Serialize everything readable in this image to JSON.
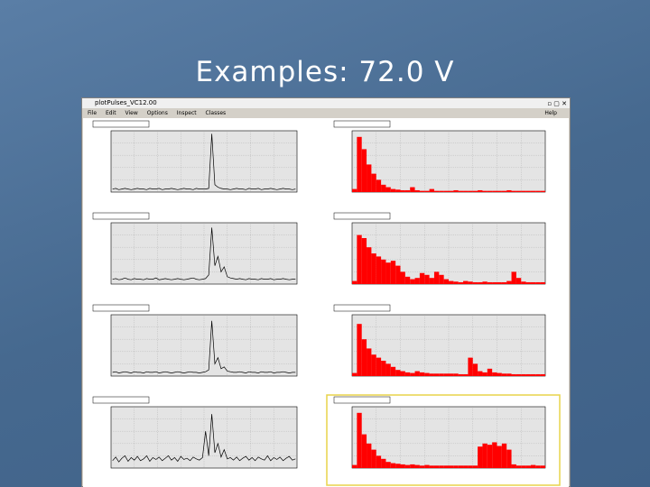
{
  "slide": {
    "title": "Examples: 72.0 V"
  },
  "window": {
    "title": "plotPulses_VC12.00",
    "menu": [
      "File",
      "Edit",
      "View",
      "Options",
      "Inspect",
      "Classes"
    ],
    "help": "Help"
  },
  "panels": [
    {
      "kind": "waveform",
      "color": "#000000",
      "ylim": [
        0,
        1
      ],
      "values": [
        0.05,
        0.06,
        0.04,
        0.05,
        0.06,
        0.05,
        0.04,
        0.05,
        0.06,
        0.05,
        0.05,
        0.04,
        0.06,
        0.05,
        0.05,
        0.06,
        0.04,
        0.05,
        0.05,
        0.06,
        0.05,
        0.04,
        0.05,
        0.06,
        0.05,
        0.05,
        0.04,
        0.06,
        0.05,
        0.05,
        0.05,
        0.06,
        0.95,
        0.12,
        0.08,
        0.06,
        0.05,
        0.05,
        0.04,
        0.05,
        0.06,
        0.05,
        0.05,
        0.04,
        0.06,
        0.05,
        0.05,
        0.06,
        0.04,
        0.05,
        0.05,
        0.06,
        0.05,
        0.04,
        0.05,
        0.06,
        0.05,
        0.05,
        0.04,
        0.05
      ]
    },
    {
      "kind": "histogram",
      "color": "#ff0000",
      "ylim": [
        0,
        1
      ],
      "values": [
        0.05,
        0.9,
        0.7,
        0.45,
        0.3,
        0.2,
        0.12,
        0.08,
        0.05,
        0.04,
        0.03,
        0.03,
        0.08,
        0.03,
        0.02,
        0.02,
        0.05,
        0.02,
        0.02,
        0.02,
        0.02,
        0.03,
        0.02,
        0.02,
        0.02,
        0.02,
        0.03,
        0.02,
        0.02,
        0.02,
        0.02,
        0.02,
        0.03,
        0.02,
        0.02,
        0.02,
        0.02,
        0.02,
        0.02,
        0.02
      ]
    },
    {
      "kind": "waveform",
      "color": "#000000",
      "ylim": [
        0,
        1
      ],
      "values": [
        0.08,
        0.09,
        0.07,
        0.08,
        0.1,
        0.08,
        0.07,
        0.09,
        0.08,
        0.08,
        0.07,
        0.09,
        0.08,
        0.08,
        0.1,
        0.07,
        0.08,
        0.09,
        0.08,
        0.07,
        0.08,
        0.09,
        0.08,
        0.07,
        0.08,
        0.09,
        0.1,
        0.08,
        0.07,
        0.08,
        0.09,
        0.15,
        0.92,
        0.3,
        0.45,
        0.2,
        0.28,
        0.12,
        0.1,
        0.09,
        0.08,
        0.09,
        0.08,
        0.07,
        0.09,
        0.08,
        0.08,
        0.07,
        0.09,
        0.08,
        0.08,
        0.09,
        0.07,
        0.08,
        0.08,
        0.09,
        0.08,
        0.07,
        0.08,
        0.08
      ]
    },
    {
      "kind": "histogram",
      "color": "#ff0000",
      "ylim": [
        0,
        1
      ],
      "values": [
        0.05,
        0.8,
        0.75,
        0.6,
        0.5,
        0.45,
        0.4,
        0.35,
        0.38,
        0.3,
        0.2,
        0.12,
        0.08,
        0.1,
        0.18,
        0.15,
        0.1,
        0.2,
        0.15,
        0.08,
        0.05,
        0.04,
        0.03,
        0.05,
        0.04,
        0.03,
        0.03,
        0.04,
        0.03,
        0.03,
        0.03,
        0.03,
        0.05,
        0.2,
        0.1,
        0.04,
        0.03,
        0.03,
        0.03,
        0.03
      ]
    },
    {
      "kind": "waveform",
      "color": "#000000",
      "ylim": [
        0,
        1
      ],
      "values": [
        0.06,
        0.07,
        0.05,
        0.06,
        0.07,
        0.06,
        0.05,
        0.07,
        0.06,
        0.06,
        0.05,
        0.07,
        0.06,
        0.06,
        0.07,
        0.05,
        0.06,
        0.07,
        0.06,
        0.05,
        0.06,
        0.07,
        0.06,
        0.05,
        0.06,
        0.07,
        0.06,
        0.06,
        0.05,
        0.06,
        0.07,
        0.1,
        0.9,
        0.2,
        0.3,
        0.12,
        0.15,
        0.08,
        0.07,
        0.06,
        0.06,
        0.07,
        0.06,
        0.05,
        0.07,
        0.06,
        0.06,
        0.05,
        0.07,
        0.06,
        0.06,
        0.07,
        0.05,
        0.06,
        0.06,
        0.07,
        0.06,
        0.05,
        0.06,
        0.06
      ]
    },
    {
      "kind": "histogram",
      "color": "#ff0000",
      "ylim": [
        0,
        1
      ],
      "values": [
        0.05,
        0.85,
        0.6,
        0.45,
        0.35,
        0.3,
        0.25,
        0.2,
        0.15,
        0.1,
        0.08,
        0.06,
        0.05,
        0.08,
        0.06,
        0.05,
        0.04,
        0.04,
        0.04,
        0.04,
        0.04,
        0.04,
        0.03,
        0.03,
        0.3,
        0.2,
        0.08,
        0.06,
        0.12,
        0.06,
        0.05,
        0.04,
        0.04,
        0.03,
        0.03,
        0.03,
        0.03,
        0.03,
        0.03,
        0.03
      ]
    },
    {
      "kind": "waveform",
      "color": "#000000",
      "ylim": [
        0,
        1
      ],
      "values": [
        0.12,
        0.18,
        0.1,
        0.16,
        0.2,
        0.11,
        0.17,
        0.13,
        0.19,
        0.12,
        0.15,
        0.2,
        0.11,
        0.17,
        0.14,
        0.18,
        0.12,
        0.16,
        0.2,
        0.13,
        0.17,
        0.11,
        0.19,
        0.14,
        0.16,
        0.12,
        0.18,
        0.15,
        0.13,
        0.17,
        0.6,
        0.2,
        0.88,
        0.25,
        0.4,
        0.18,
        0.3,
        0.15,
        0.17,
        0.13,
        0.18,
        0.12,
        0.16,
        0.19,
        0.13,
        0.17,
        0.12,
        0.18,
        0.15,
        0.13,
        0.2,
        0.12,
        0.17,
        0.14,
        0.18,
        0.12,
        0.16,
        0.19,
        0.13,
        0.15
      ]
    },
    {
      "kind": "histogram",
      "color": "#ff0000",
      "ylim": [
        0,
        1
      ],
      "selected": true,
      "values": [
        0.05,
        0.9,
        0.55,
        0.4,
        0.3,
        0.2,
        0.15,
        0.1,
        0.08,
        0.07,
        0.06,
        0.05,
        0.06,
        0.05,
        0.04,
        0.05,
        0.04,
        0.04,
        0.04,
        0.04,
        0.04,
        0.04,
        0.04,
        0.04,
        0.04,
        0.04,
        0.35,
        0.4,
        0.38,
        0.42,
        0.36,
        0.4,
        0.3,
        0.06,
        0.04,
        0.04,
        0.04,
        0.05,
        0.04,
        0.04
      ]
    }
  ]
}
